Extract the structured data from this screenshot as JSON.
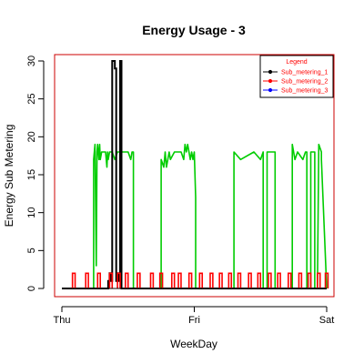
{
  "chart_data": {
    "type": "line",
    "title": "Energy Usage - 3",
    "xlabel": "WeekDay",
    "ylabel": "Energy Sub Metering",
    "x_ticks": [
      {
        "value": 0,
        "label": "Thu"
      },
      {
        "value": 1,
        "label": "Fri"
      },
      {
        "value": 2,
        "label": "Sat"
      }
    ],
    "y_ticks": [
      0,
      5,
      10,
      15,
      20,
      25,
      30
    ],
    "xlim": [
      0,
      2
    ],
    "ylim": [
      0,
      30
    ],
    "grid": false,
    "legend": {
      "title": "Legend",
      "placement": "top-right",
      "entries": [
        "Sub_metering_1",
        "Sub_metering_2",
        "Sub_metering_3"
      ]
    },
    "colors": {
      "Sub_metering_1": "#000000",
      "Sub_metering_2": "#ff0000",
      "Sub_metering_3": "#00cc00",
      "legend_sub_metering_3": "#0000ff",
      "plot_frame": "#cc0000",
      "legend_text": "#ff0000"
    },
    "series": [
      {
        "name": "Sub_metering_1",
        "x": [
          0,
          0.35,
          0.35,
          0.36,
          0.36,
          0.37,
          0.37,
          0.38,
          0.38,
          0.4,
          0.4,
          0.41,
          0.41,
          0.42,
          0.42,
          0.43,
          0.43,
          0.44,
          0.44,
          0.45,
          0.45,
          2
        ],
        "y": [
          0,
          0,
          1,
          1,
          2,
          2,
          1,
          1,
          30,
          30,
          29,
          29,
          1,
          1,
          2,
          2,
          1,
          1,
          30,
          30,
          0,
          0
        ]
      },
      {
        "name": "Sub_metering_2",
        "spikes": {
          "x": [
            0.08,
            0.18,
            0.27,
            0.36,
            0.42,
            0.48,
            0.57,
            0.67,
            0.74,
            0.83,
            0.88,
            0.96,
            1.04,
            1.12,
            1.19,
            1.26,
            1.33,
            1.41,
            1.48,
            1.56,
            1.63,
            1.71,
            1.79,
            1.86,
            1.93,
            1.99
          ],
          "height": 2,
          "width": 0.02
        }
      },
      {
        "name": "Sub_metering_3",
        "x": [
          0,
          0.24,
          0.24,
          0.25,
          0.26,
          0.265,
          0.27,
          0.28,
          0.285,
          0.29,
          0.3,
          0.33,
          0.34,
          0.345,
          0.35,
          0.36,
          0.38,
          0.4,
          0.42,
          0.5,
          0.52,
          0.53,
          0.54,
          0.54,
          0.75,
          0.75,
          0.77,
          0.78,
          0.79,
          0.8,
          0.81,
          0.82,
          0.85,
          0.9,
          0.92,
          0.93,
          0.94,
          0.95,
          0.96,
          0.97,
          0.98,
          0.99,
          1.0,
          1.01,
          1.01,
          1.3,
          1.3,
          1.35,
          1.45,
          1.5,
          1.52,
          1.52,
          1.55,
          1.55,
          1.61,
          1.61,
          1.74,
          1.74,
          1.76,
          1.78,
          1.82,
          1.84,
          1.85,
          1.85,
          1.88,
          1.88,
          1.91,
          1.91,
          1.93,
          1.94,
          1.96,
          1.96,
          2
        ],
        "y": [
          0,
          0,
          17,
          19,
          3,
          18,
          19,
          17,
          19,
          17,
          18,
          18,
          16,
          18,
          17,
          18,
          18,
          17,
          18,
          18,
          17,
          18,
          18,
          0,
          0,
          17,
          16,
          18,
          16,
          17,
          18,
          17,
          18,
          18,
          17,
          19,
          18,
          19,
          18,
          17,
          18,
          17,
          18,
          12,
          0,
          0,
          18,
          17,
          18,
          17,
          18,
          0,
          0,
          18,
          18,
          0,
          0,
          19,
          17,
          18,
          17,
          18,
          18,
          0,
          0,
          18,
          18,
          0,
          0,
          19,
          18,
          17,
          0
        ]
      }
    ]
  }
}
